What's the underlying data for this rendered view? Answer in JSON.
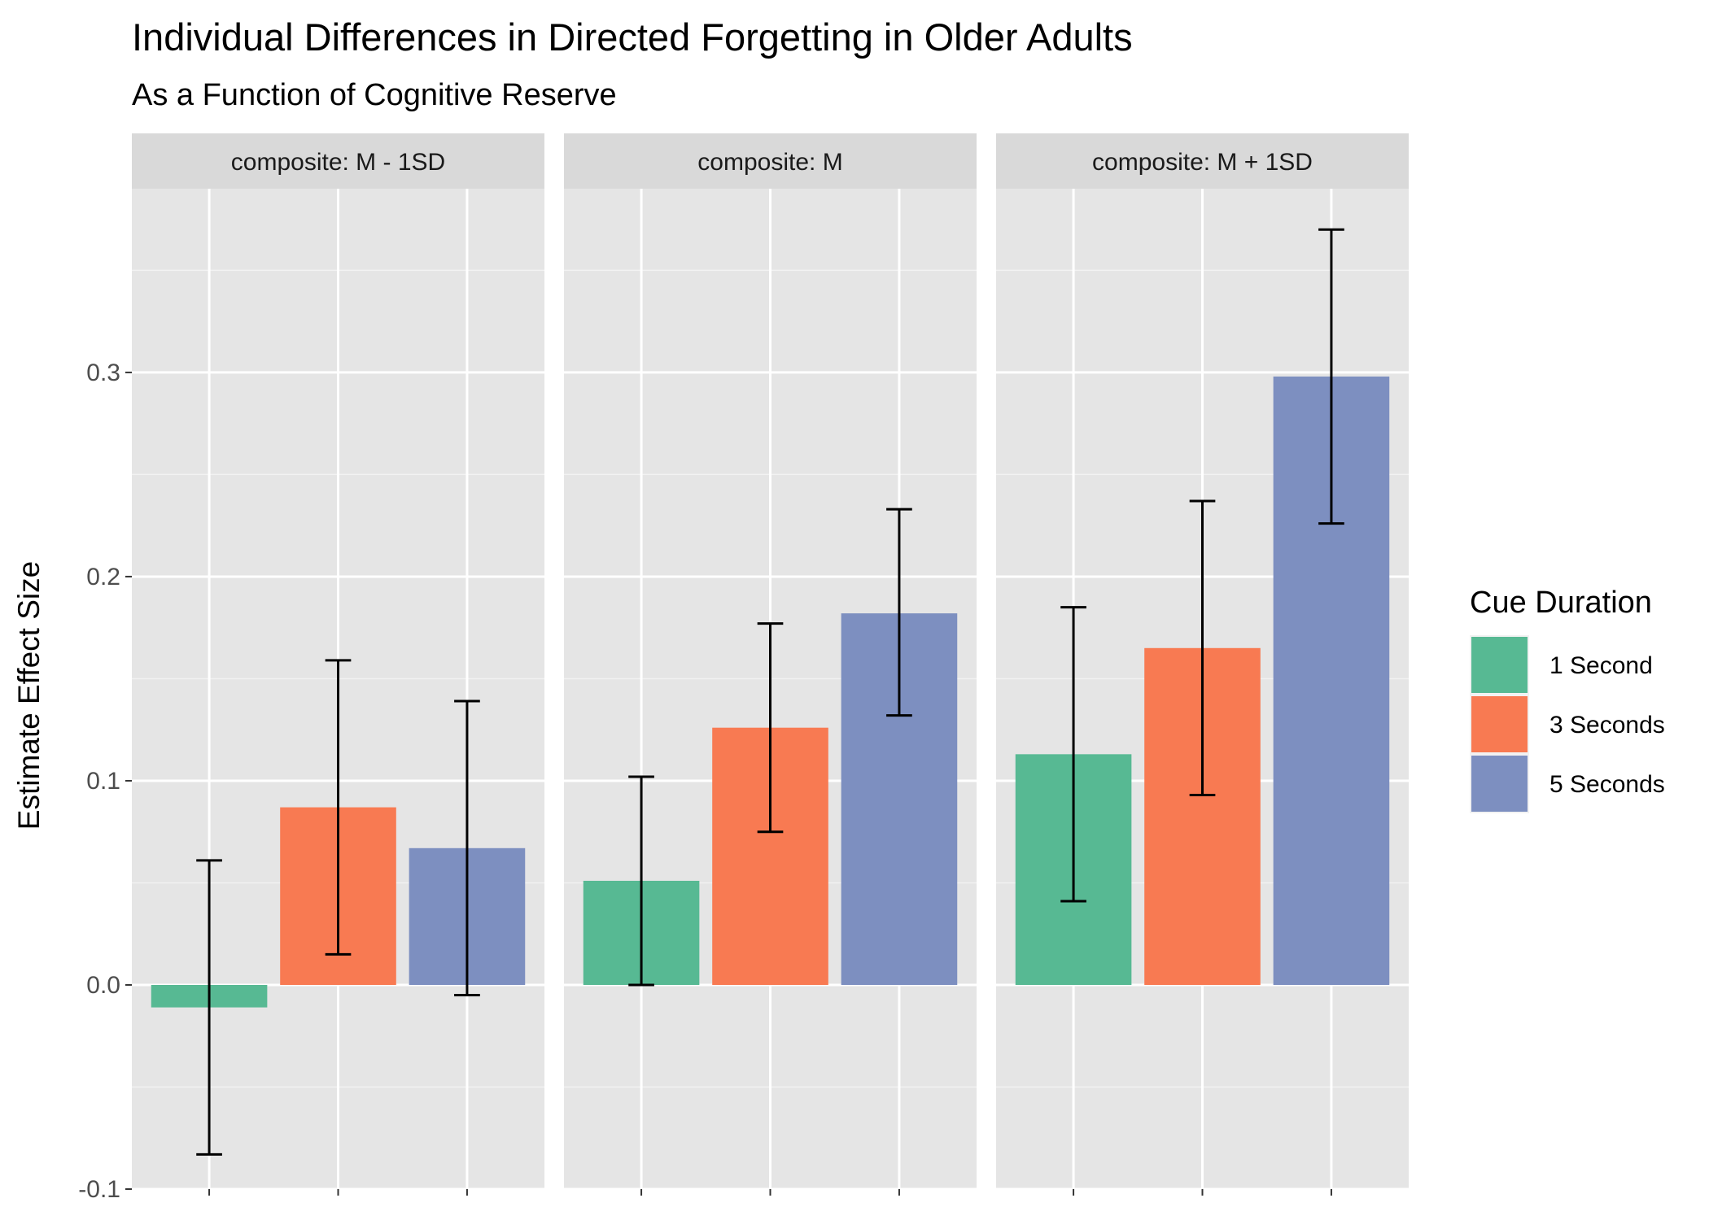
{
  "chart_data": {
    "type": "bar",
    "title": "Individual Differences in Directed Forgetting in Older Adults",
    "subtitle": "As a Function of Cognitive Reserve",
    "ylabel": "Estimate Effect Size",
    "xlabel": "",
    "ylim": [
      -0.1,
      0.39
    ],
    "yticks": [
      -0.1,
      0.0,
      0.1,
      0.2,
      0.3
    ],
    "ytick_labels": [
      "-0.1",
      "0.0",
      "0.1",
      "0.2",
      "0.3"
    ],
    "grid": true,
    "legend": {
      "title": "Cue Duration",
      "placement": "right",
      "entries": [
        "1 Second",
        "3 Seconds",
        "5 Seconds"
      ]
    },
    "colors": [
      "#57b993",
      "#f87a52",
      "#7d8fc0"
    ],
    "panels": [
      {
        "label": "composite: M - 1SD",
        "values": [
          -0.011,
          0.087,
          0.067
        ],
        "ci_low": [
          -0.083,
          0.015,
          -0.005
        ],
        "ci_high": [
          0.061,
          0.159,
          0.139
        ]
      },
      {
        "label": "composite: M",
        "values": [
          0.051,
          0.126,
          0.182
        ],
        "ci_low": [
          0.0,
          0.075,
          0.132
        ],
        "ci_high": [
          0.102,
          0.177,
          0.233
        ]
      },
      {
        "label": "composite: M + 1SD",
        "values": [
          0.113,
          0.165,
          0.298
        ],
        "ci_low": [
          0.041,
          0.093,
          0.226
        ],
        "ci_high": [
          0.185,
          0.237,
          0.37
        ]
      }
    ]
  }
}
